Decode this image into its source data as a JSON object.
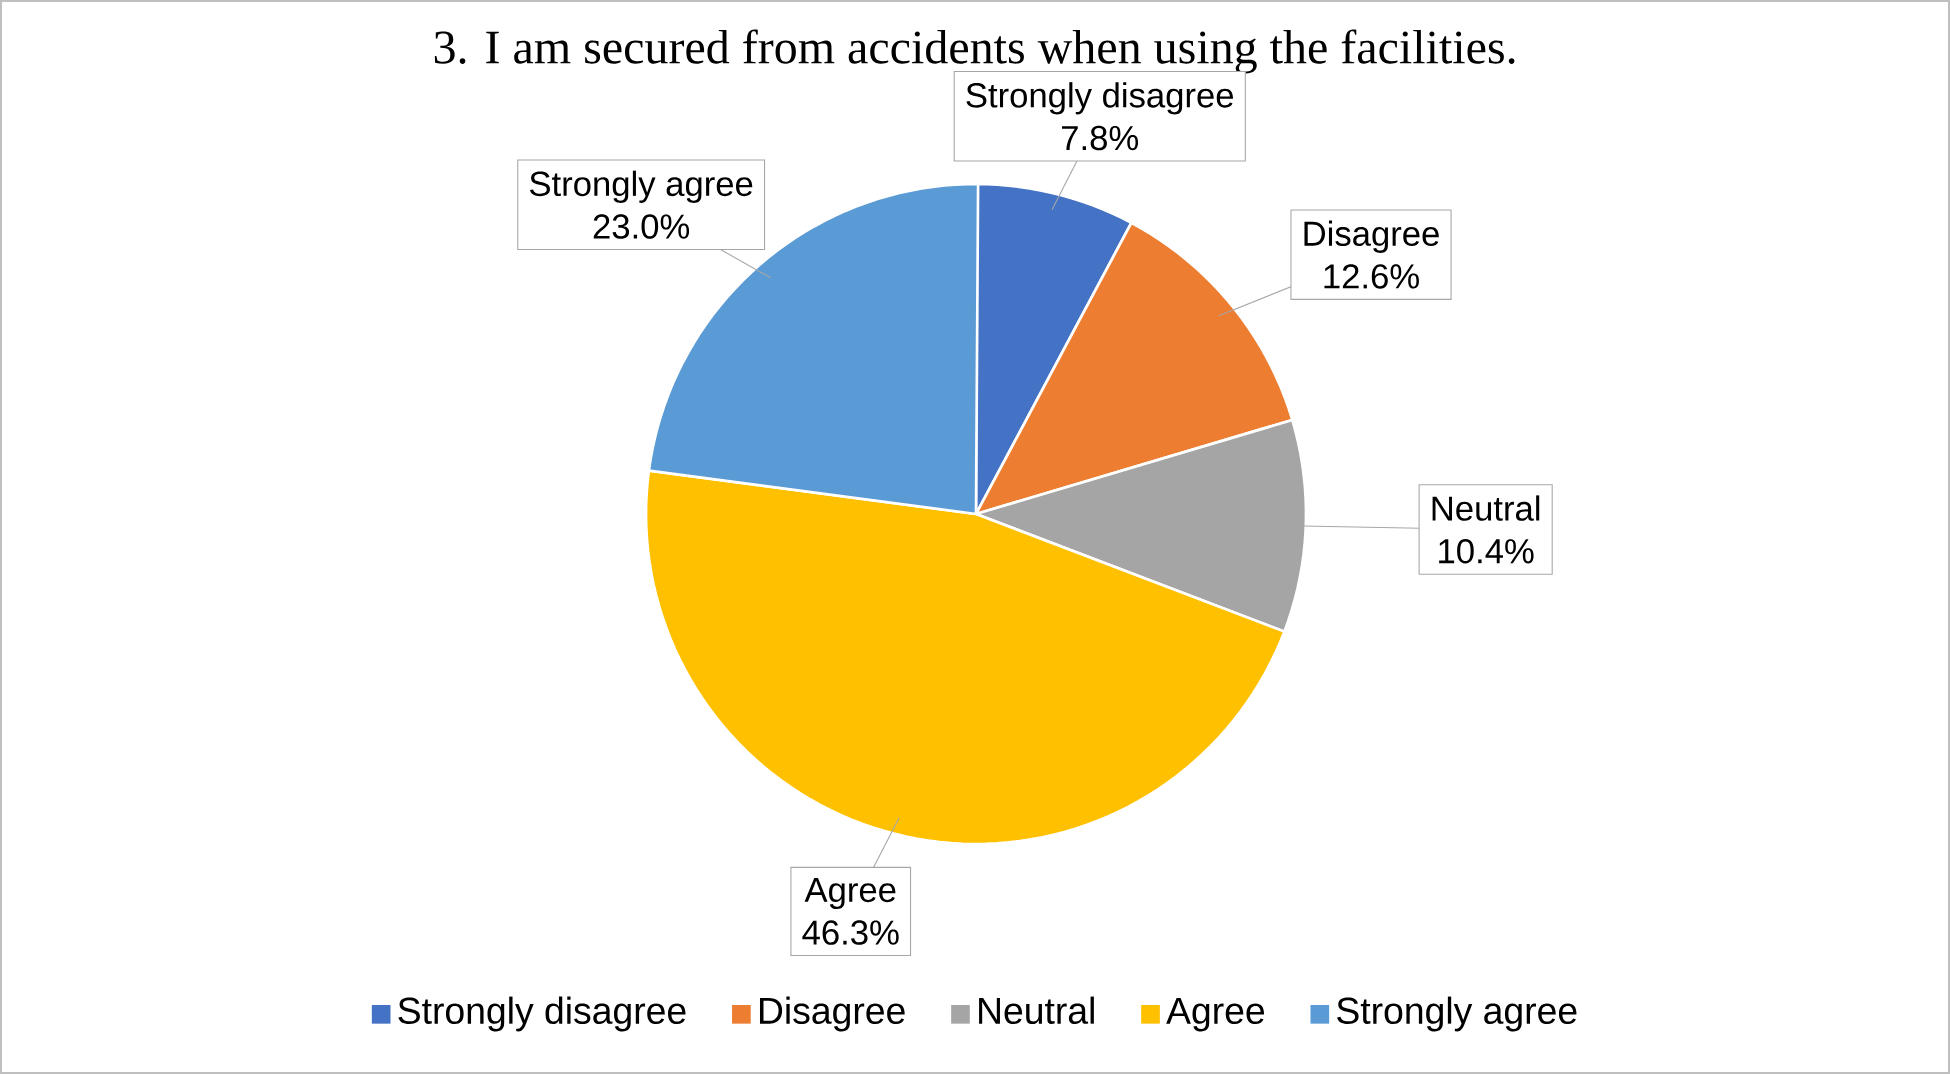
{
  "chart_data": {
    "type": "pie",
    "title": "3.      I am secured from accidents when using the facilities.",
    "categories": [
      "Strongly disagree",
      "Disagree",
      "Neutral",
      "Agree",
      "Strongly agree"
    ],
    "values": [
      7.8,
      12.6,
      10.4,
      46.3,
      23.0
    ],
    "value_labels": [
      "7.8%",
      "12.6%",
      "10.4%",
      "46.3%",
      "23.0%"
    ],
    "colors": [
      "#4472c4",
      "#ed7d31",
      "#a5a5a5",
      "#ffc000",
      "#5b9bd5"
    ],
    "legend": "bottom"
  }
}
